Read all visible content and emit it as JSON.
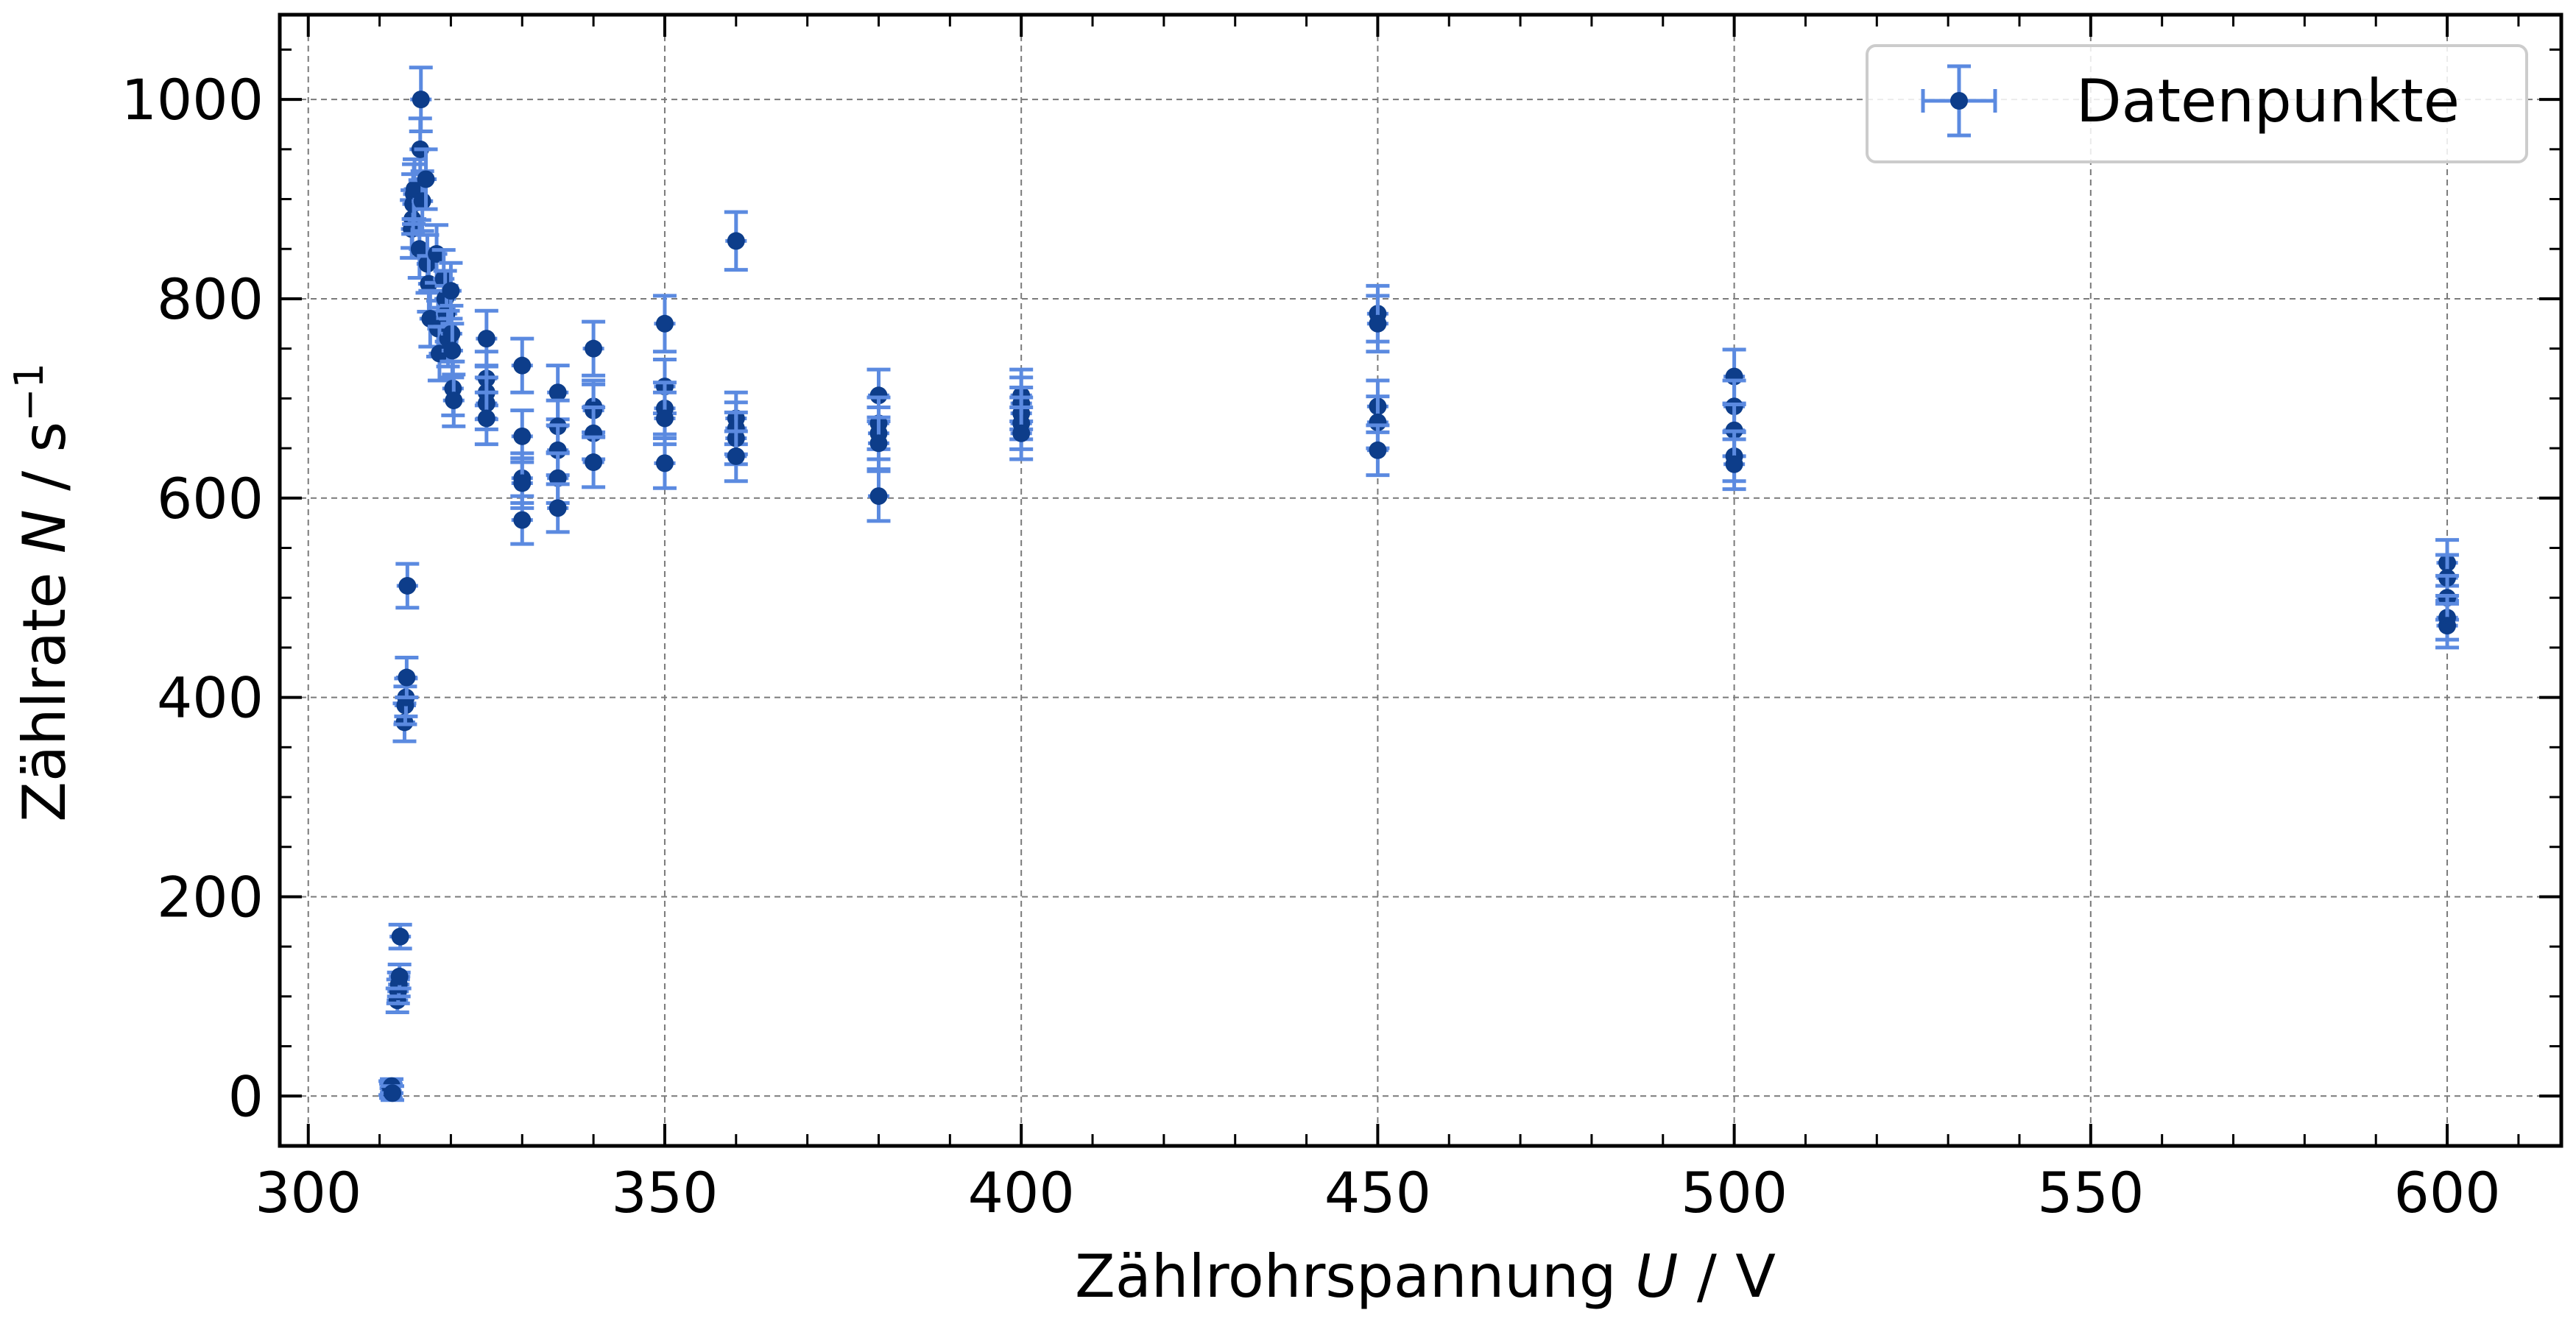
{
  "chart_data": {
    "type": "scatter",
    "xlabel_prefix": "Zählrohrspannung ",
    "xlabel_var": "U",
    "xlabel_suffix": " / V",
    "ylabel_prefix": "Zählrate ",
    "ylabel_var": "N",
    "ylabel_unit": " / s",
    "ylabel_exp": "−1",
    "xlim": [
      296,
      616
    ],
    "ylim": [
      -50,
      1085
    ],
    "xticks": [
      300,
      350,
      400,
      450,
      500,
      550,
      600
    ],
    "yticks": [
      0,
      200,
      400,
      600,
      800,
      1000
    ],
    "x_minor_step": 10,
    "y_minor_step": 50,
    "grid": true,
    "legend_position": "top-right",
    "colors": {
      "marker": "#0d3d8a",
      "errorbar": "#5b8ae0",
      "grid": "#7a7a7a",
      "axis": "#000000"
    },
    "series": [
      {
        "name": "Datenpunkte",
        "xerr": 1.5,
        "points": [
          [
            311.5,
            8,
            7
          ],
          [
            311.6,
            5,
            7
          ],
          [
            311.7,
            10,
            7
          ],
          [
            311.8,
            3,
            7
          ],
          [
            312.5,
            96,
            12
          ],
          [
            312.6,
            105,
            12
          ],
          [
            312.7,
            112,
            12
          ],
          [
            312.8,
            120,
            12
          ],
          [
            312.9,
            160,
            12
          ],
          [
            313.5,
            375,
            19
          ],
          [
            313.6,
            392,
            19
          ],
          [
            313.7,
            400,
            19
          ],
          [
            313.8,
            420,
            20
          ],
          [
            313.9,
            512,
            22
          ],
          [
            314.5,
            870,
            29
          ],
          [
            314.6,
            880,
            29
          ],
          [
            314.7,
            895,
            30
          ],
          [
            314.8,
            905,
            30
          ],
          [
            314.9,
            910,
            30
          ],
          [
            315.6,
            850,
            29
          ],
          [
            315.7,
            950,
            31
          ],
          [
            315.8,
            1000,
            32
          ],
          [
            316,
            898,
            30
          ],
          [
            316.5,
            920,
            30
          ],
          [
            316.7,
            835,
            29
          ],
          [
            316.9,
            815,
            28
          ],
          [
            317.1,
            780,
            28
          ],
          [
            318,
            845,
            29
          ],
          [
            318.2,
            770,
            28
          ],
          [
            318.4,
            745,
            27
          ],
          [
            319,
            820,
            29
          ],
          [
            319.2,
            800,
            28
          ],
          [
            319.4,
            785,
            28
          ],
          [
            319.6,
            760,
            28
          ],
          [
            320,
            808,
            28
          ],
          [
            320.1,
            765,
            28
          ],
          [
            320.2,
            748,
            27
          ],
          [
            320.3,
            710,
            27
          ],
          [
            320.4,
            698,
            26
          ],
          [
            325,
            760,
            28
          ],
          [
            325,
            720,
            27
          ],
          [
            325,
            706,
            27
          ],
          [
            325,
            695,
            26
          ],
          [
            325,
            680,
            26
          ],
          [
            330,
            733,
            27
          ],
          [
            330,
            662,
            26
          ],
          [
            330,
            620,
            25
          ],
          [
            330,
            615,
            25
          ],
          [
            330,
            578,
            24
          ],
          [
            335,
            706,
            27
          ],
          [
            335,
            672,
            26
          ],
          [
            335,
            648,
            25
          ],
          [
            335,
            620,
            25
          ],
          [
            335,
            590,
            24
          ],
          [
            340,
            750,
            27
          ],
          [
            340,
            692,
            26
          ],
          [
            340,
            688,
            26
          ],
          [
            340,
            665,
            26
          ],
          [
            340,
            636,
            25
          ],
          [
            350,
            775,
            28
          ],
          [
            350,
            712,
            27
          ],
          [
            350,
            690,
            26
          ],
          [
            350,
            680,
            26
          ],
          [
            350,
            635,
            25
          ],
          [
            360,
            858,
            29
          ],
          [
            360,
            680,
            26
          ],
          [
            360,
            670,
            26
          ],
          [
            360,
            660,
            26
          ],
          [
            360,
            642,
            25
          ],
          [
            380,
            703,
            26
          ],
          [
            380,
            675,
            26
          ],
          [
            380,
            665,
            26
          ],
          [
            380,
            655,
            26
          ],
          [
            380,
            602,
            25
          ],
          [
            400,
            703,
            26
          ],
          [
            400,
            695,
            26
          ],
          [
            400,
            685,
            26
          ],
          [
            400,
            675,
            26
          ],
          [
            400,
            665,
            26
          ],
          [
            450,
            785,
            28
          ],
          [
            450,
            775,
            28
          ],
          [
            450,
            692,
            26
          ],
          [
            450,
            676,
            26
          ],
          [
            450,
            648,
            25
          ],
          [
            500,
            722,
            27
          ],
          [
            500,
            692,
            26
          ],
          [
            500,
            668,
            26
          ],
          [
            500,
            642,
            25
          ],
          [
            500,
            634,
            25
          ],
          [
            600,
            535,
            23
          ],
          [
            600,
            520,
            23
          ],
          [
            600,
            500,
            22
          ],
          [
            600,
            480,
            22
          ],
          [
            600,
            472,
            22
          ]
        ]
      }
    ]
  }
}
